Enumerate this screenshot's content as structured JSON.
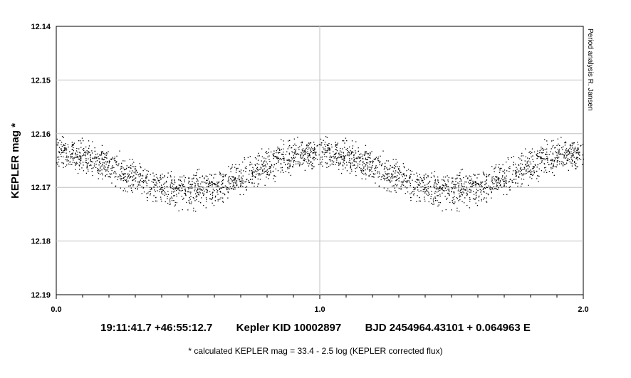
{
  "chart_data": {
    "type": "scatter",
    "xlabel": "",
    "ylabel": "KEPLER mag *",
    "xlim": [
      0.0,
      2.0
    ],
    "ylim": [
      12.14,
      12.19
    ],
    "y_inverted": true,
    "x_ticks": [
      "0.0",
      "1.0",
      "2.0"
    ],
    "y_ticks": [
      "12.14",
      "12.15",
      "12.16",
      "12.17",
      "12.18",
      "12.19"
    ],
    "grid": true,
    "side_note": "Period analysis  R. Jansen",
    "caption_line": "19:11:41.7 +46:55:12.7        Kepler KID 10002897        BJD 2454964.43101 + 0.064963 E",
    "footnote": "* calculated KEPLER mag = 33.4 - 2.5 log (KEPLER corrected flux)",
    "series_description": "phase-folded light curve, repeated for phases 0-2; mean mag varies sinusoidally",
    "model": {
      "phase_of_max_brightness": 0.0,
      "mean_mag_at_max": 12.1635,
      "mean_mag_at_min": 12.1705,
      "scatter_half_width": 0.0045,
      "points_per_cycle": 1400
    },
    "point_color": "#000000"
  }
}
